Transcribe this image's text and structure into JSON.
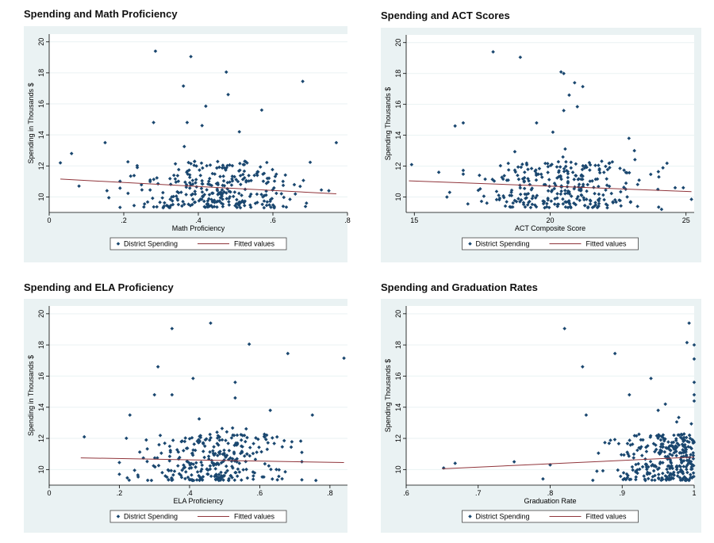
{
  "colors": {
    "panel_bg": "#eaf2f3",
    "plot_bg": "#ffffff",
    "dots": "#1a476f",
    "fit": "#90353b",
    "grid": "#eaf2f3"
  },
  "legend_labels": {
    "dots": "District Spending",
    "fit": "Fitted values"
  },
  "chart_data": [
    {
      "id": "math",
      "type": "scatter",
      "title": "Spending and Math Proficiency",
      "xlabel": "Math Proficiency",
      "ylabel": "Spending in Thousands $",
      "xlim": [
        0,
        0.8
      ],
      "ylim": [
        9,
        20.5
      ],
      "xticks": [
        0,
        0.2,
        0.4,
        0.6,
        0.8
      ],
      "xtick_labels": [
        "0",
        ".2",
        ".4",
        ".6",
        ".8"
      ],
      "yticks": [
        10,
        12,
        14,
        16,
        18,
        20
      ],
      "ytick_labels": [
        "10",
        "12",
        "14",
        "16",
        "18",
        "20"
      ],
      "fit": [
        [
          0.03,
          11.15
        ],
        [
          0.77,
          10.2
        ]
      ],
      "outliers": [
        [
          0.285,
          19.4
        ],
        [
          0.38,
          19.05
        ],
        [
          0.475,
          18.05
        ],
        [
          0.36,
          17.15
        ],
        [
          0.68,
          17.45
        ],
        [
          0.48,
          16.6
        ],
        [
          0.42,
          15.85
        ],
        [
          0.57,
          15.6
        ],
        [
          0.28,
          14.8
        ],
        [
          0.37,
          14.8
        ],
        [
          0.41,
          14.6
        ],
        [
          0.51,
          14.2
        ],
        [
          0.15,
          13.5
        ],
        [
          0.77,
          13.5
        ],
        [
          0.06,
          12.8
        ],
        [
          0.03,
          12.2
        ],
        [
          0.08,
          10.7
        ],
        [
          0.155,
          10.4
        ],
        [
          0.16,
          9.95
        ],
        [
          0.73,
          10.45
        ],
        [
          0.75,
          10.4
        ],
        [
          0.69,
          9.6
        ]
      ],
      "cloud": {
        "x_min": 0.19,
        "x_max": 0.7,
        "y_min": 9.3,
        "y_max": 12.3,
        "n": 300
      },
      "legend": [
        "District Spending",
        "Fitted values"
      ]
    },
    {
      "id": "act",
      "type": "scatter",
      "title": "Spending and ACT Scores",
      "xlabel": "ACT Composite Score",
      "ylabel": "Spending Thousands $",
      "xlim": [
        14.7,
        25.3
      ],
      "ylim": [
        9,
        20.5
      ],
      "xticks": [
        15,
        20,
        25
      ],
      "xtick_labels": [
        "15",
        "20",
        "25"
      ],
      "yticks": [
        10,
        12,
        14,
        16,
        18,
        20
      ],
      "ytick_labels": [
        "10",
        "12",
        "14",
        "16",
        "18",
        "20"
      ],
      "fit": [
        [
          14.8,
          11.05
        ],
        [
          25.2,
          10.35
        ]
      ],
      "outliers": [
        [
          17.9,
          19.4
        ],
        [
          18.9,
          19.05
        ],
        [
          20.4,
          18.1
        ],
        [
          20.5,
          18.0
        ],
        [
          20.9,
          17.4
        ],
        [
          21.2,
          17.15
        ],
        [
          20.7,
          16.6
        ],
        [
          21.0,
          15.85
        ],
        [
          20.5,
          15.6
        ],
        [
          16.5,
          14.6
        ],
        [
          16.8,
          14.8
        ],
        [
          19.5,
          14.8
        ],
        [
          20.1,
          14.2
        ],
        [
          22.9,
          13.8
        ],
        [
          23.1,
          13.0
        ],
        [
          14.9,
          12.1
        ],
        [
          15.9,
          11.6
        ],
        [
          16.3,
          10.3
        ],
        [
          16.2,
          10.0
        ],
        [
          24.0,
          11.3
        ],
        [
          24.6,
          10.6
        ],
        [
          24.9,
          10.6
        ],
        [
          25.2,
          9.85
        ],
        [
          24.1,
          9.2
        ]
      ],
      "cloud": {
        "x_min": 16.8,
        "x_max": 24.3,
        "y_min": 9.3,
        "y_max": 12.3,
        "n": 300
      },
      "legend": [
        "District Spending",
        "Fitted values"
      ]
    },
    {
      "id": "ela",
      "type": "scatter",
      "title": "Spending and ELA Proficiency",
      "xlabel": "ELA Proficiency",
      "ylabel": "Spending in Thousands $",
      "xlim": [
        0,
        0.85
      ],
      "ylim": [
        9,
        20.5
      ],
      "xticks": [
        0,
        0.2,
        0.4,
        0.6,
        0.8
      ],
      "xtick_labels": [
        "0",
        ".2",
        ".4",
        ".6",
        ".8"
      ],
      "yticks": [
        10,
        12,
        14,
        16,
        18,
        20
      ],
      "ytick_labels": [
        "10",
        "12",
        "14",
        "16",
        "18",
        "20"
      ],
      "fit": [
        [
          0.09,
          10.75
        ],
        [
          0.84,
          10.45
        ]
      ],
      "outliers": [
        [
          0.46,
          19.4
        ],
        [
          0.35,
          19.05
        ],
        [
          0.57,
          18.05
        ],
        [
          0.68,
          17.45
        ],
        [
          0.84,
          17.15
        ],
        [
          0.31,
          16.6
        ],
        [
          0.41,
          15.85
        ],
        [
          0.53,
          15.6
        ],
        [
          0.53,
          14.6
        ],
        [
          0.3,
          14.8
        ],
        [
          0.35,
          14.8
        ],
        [
          0.63,
          13.8
        ],
        [
          0.75,
          13.5
        ],
        [
          0.23,
          13.5
        ],
        [
          0.1,
          12.1
        ],
        [
          0.2,
          10.45
        ],
        [
          0.76,
          9.3
        ],
        [
          0.2,
          9.7
        ]
      ],
      "cloud": {
        "x_min": 0.22,
        "x_max": 0.72,
        "y_min": 9.3,
        "y_max": 12.3,
        "n": 300
      },
      "legend": [
        "District Spending",
        "Fitted values"
      ]
    },
    {
      "id": "grad",
      "type": "scatter",
      "title": "Spending and Graduation Rates",
      "xlabel": "Graduation Rate",
      "ylabel": "Spending Thousands $",
      "xlim": [
        0.6,
        1.0
      ],
      "ylim": [
        9,
        20.5
      ],
      "xticks": [
        0.6,
        0.7,
        0.8,
        0.9,
        1.0
      ],
      "xtick_labels": [
        ".6",
        ".7",
        ".8",
        ".9",
        "1"
      ],
      "yticks": [
        10,
        12,
        14,
        16,
        18,
        20
      ],
      "ytick_labels": [
        "10",
        "12",
        "14",
        "16",
        "18",
        "20"
      ],
      "fit": [
        [
          0.65,
          10.05
        ],
        [
          1.0,
          10.8
        ]
      ],
      "outliers": [
        [
          0.652,
          10.1
        ],
        [
          0.668,
          10.4
        ],
        [
          0.75,
          10.5
        ],
        [
          0.8,
          10.3
        ],
        [
          0.82,
          19.05
        ],
        [
          0.845,
          16.6
        ],
        [
          0.85,
          13.5
        ],
        [
          0.89,
          17.45
        ],
        [
          0.94,
          15.85
        ],
        [
          0.91,
          14.8
        ],
        [
          0.993,
          19.4
        ],
        [
          0.99,
          18.15
        ],
        [
          1.0,
          18.0
        ],
        [
          1.0,
          17.1
        ],
        [
          1.0,
          15.6
        ],
        [
          1.0,
          14.8
        ],
        [
          1.0,
          14.4
        ],
        [
          0.96,
          14.2
        ],
        [
          0.95,
          13.8
        ],
        [
          0.79,
          9.4
        ]
      ],
      "cloud": {
        "x_min": 0.78,
        "x_max": 1.0,
        "y_min": 9.3,
        "y_max": 12.3,
        "n": 300
      },
      "legend": [
        "District Spending",
        "Fitted values"
      ]
    }
  ]
}
